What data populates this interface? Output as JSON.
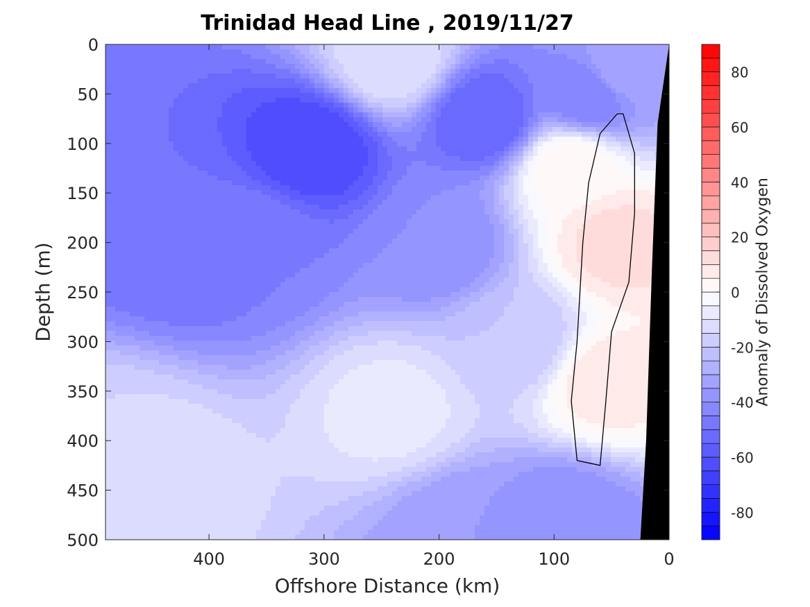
{
  "chart_data": {
    "type": "heatmap",
    "subtype": "filled-contour-section",
    "title": "Trinidad Head Line , 2019/11/27",
    "xlabel": "Offshore Distance (km)",
    "ylabel": "Depth (m)",
    "colorbar_label": "Anomaly of Dissolved Oxygen",
    "xlim": [
      490,
      0
    ],
    "x_reversed": true,
    "ylim": [
      0,
      500
    ],
    "y_reversed": true,
    "x_ticks": [
      400,
      300,
      200,
      100,
      0
    ],
    "y_ticks": [
      0,
      50,
      100,
      150,
      200,
      250,
      300,
      350,
      400,
      450,
      500
    ],
    "colorbar": {
      "range": [
        -90,
        90
      ],
      "ticks": [
        -80,
        -60,
        -40,
        -20,
        0,
        20,
        40,
        60,
        80
      ],
      "levels_step": 5,
      "colormap": "blue-white-red",
      "low_color": "#0000ff",
      "mid_color": "#ffffff",
      "high_color": "#ff0000"
    },
    "grid": false,
    "zero_contour": true,
    "bathymetry_color": "#000000",
    "bathymetry": {
      "distance_km": [
        0,
        10,
        15,
        20,
        25
      ],
      "depth_m": [
        0,
        80,
        230,
        400,
        500
      ]
    },
    "features": [
      {
        "x": 310,
        "y": 105,
        "value": -65
      },
      {
        "x": 460,
        "y": 170,
        "value": -50
      },
      {
        "x": 420,
        "y": 210,
        "value": -50
      },
      {
        "x": 360,
        "y": 200,
        "value": -45
      },
      {
        "x": 160,
        "y": 75,
        "value": -55
      },
      {
        "x": 200,
        "y": 200,
        "value": -40
      },
      {
        "x": 70,
        "y": 50,
        "value": -45
      },
      {
        "x": 40,
        "y": 25,
        "value": -30
      },
      {
        "x": 85,
        "y": 125,
        "value": 4
      },
      {
        "x": 45,
        "y": 200,
        "value": 12
      },
      {
        "x": 55,
        "y": 340,
        "value": 8
      },
      {
        "x": 240,
        "y": 370,
        "value": -8
      },
      {
        "x": 180,
        "y": 490,
        "value": -35
      },
      {
        "x": 90,
        "y": 480,
        "value": -40
      },
      {
        "x": 450,
        "y": 430,
        "value": -10
      },
      {
        "x": 240,
        "y": 15,
        "value": -10
      },
      {
        "x": 130,
        "y": 300,
        "value": -20
      },
      {
        "x": 490,
        "y": 400,
        "value": -15
      }
    ]
  }
}
